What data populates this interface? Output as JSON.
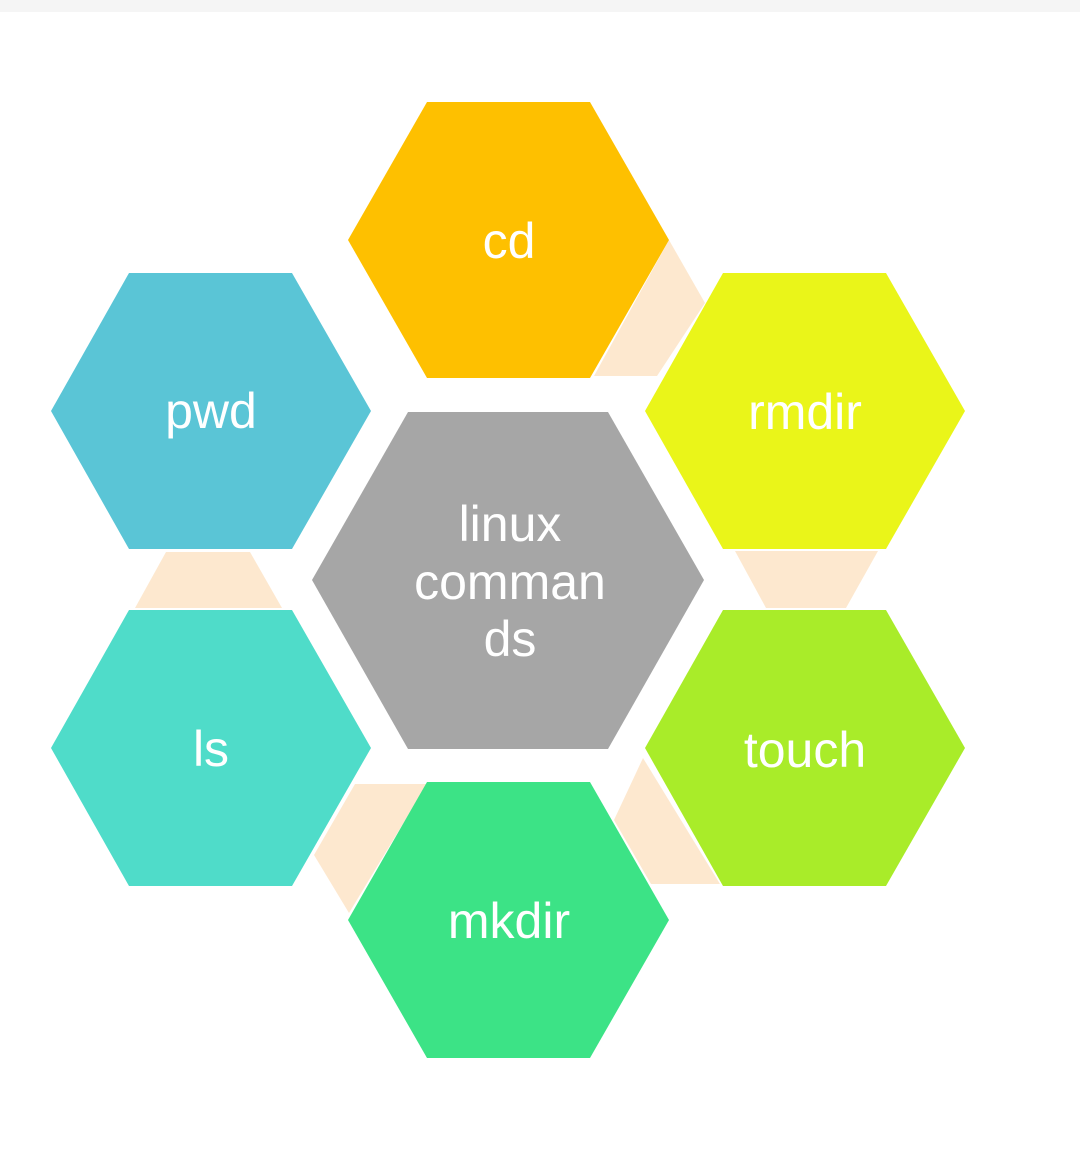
{
  "diagram": {
    "center": {
      "lines": [
        "linux",
        "comman",
        "ds"
      ],
      "color": "#a6a6a6"
    },
    "nodes": [
      {
        "label": "cd",
        "color": "#fec000"
      },
      {
        "label": "rmdir",
        "color": "#eaf519"
      },
      {
        "label": "touch",
        "color": "#a9ec29"
      },
      {
        "label": "mkdir",
        "color": "#3ce386"
      },
      {
        "label": "ls",
        "color": "#4fdcc9"
      },
      {
        "label": "pwd",
        "color": "#5ac5d6"
      }
    ],
    "connector_color": "#fde8cf",
    "text_color": "#ffffff"
  }
}
